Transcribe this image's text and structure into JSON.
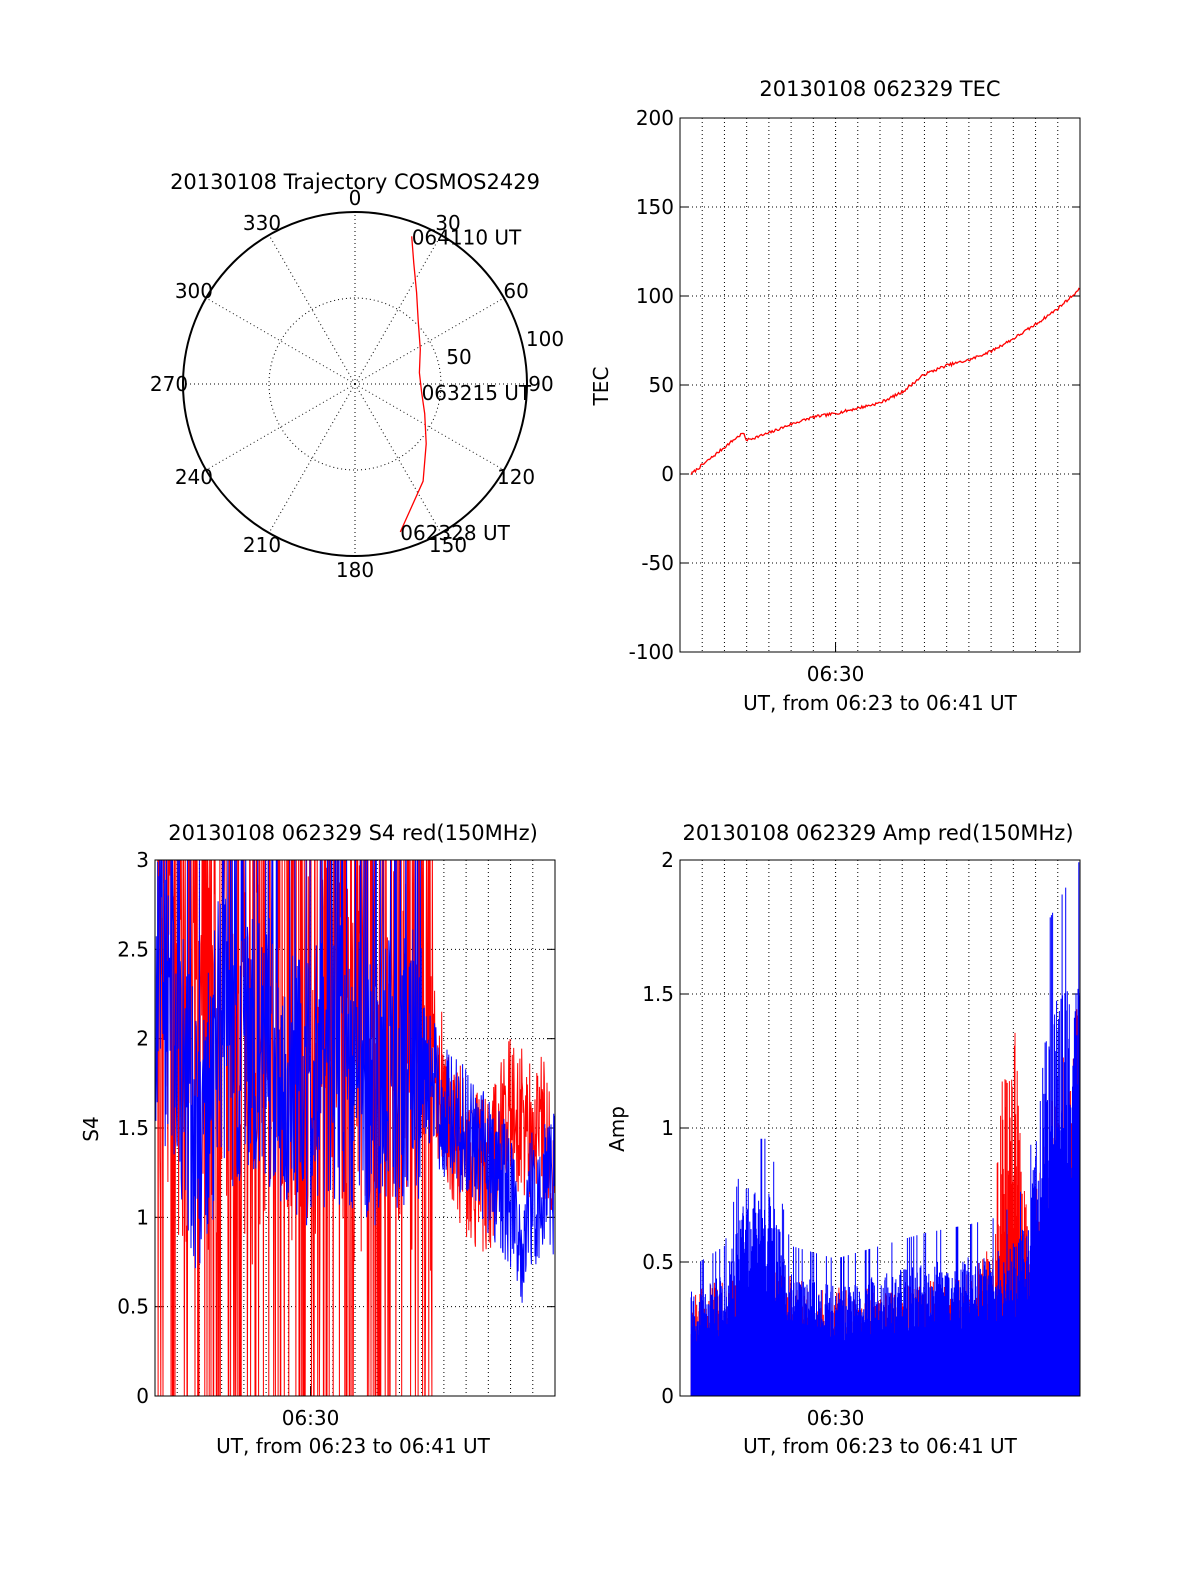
{
  "colors": {
    "red": "#ff0000",
    "blue": "#0000ff",
    "black": "#000000",
    "background": "#ffffff"
  },
  "chart_data": [
    {
      "id": "trajectory",
      "type": "polar",
      "title": "20130108 Trajectory COSMOS2429",
      "angle_labels": [
        "0",
        "30",
        "60",
        "90",
        "120",
        "150",
        "180",
        "210",
        "240",
        "270",
        "300",
        "330"
      ],
      "radial_labels": [
        "50",
        "100"
      ],
      "rlim": [
        0,
        100
      ],
      "grid": true,
      "series": [
        {
          "color": "#ff0000",
          "points": [
            {
              "az": 21,
              "r": 92
            },
            {
              "az": 26,
              "r": 78
            },
            {
              "az": 34,
              "r": 64
            },
            {
              "az": 45,
              "r": 52
            },
            {
              "az": 62,
              "r": 43
            },
            {
              "az": 80,
              "r": 38
            },
            {
              "az": 97,
              "r": 39
            },
            {
              "az": 113,
              "r": 44
            },
            {
              "az": 130,
              "r": 54
            },
            {
              "az": 145,
              "r": 69
            },
            {
              "az": 163,
              "r": 90
            }
          ]
        }
      ],
      "annotations": [
        {
          "text": "064110 UT",
          "az": 21,
          "r": 92
        },
        {
          "text": "063215 UT",
          "az": 97,
          "r": 39
        },
        {
          "text": "062328 UT",
          "az": 163,
          "r": 90
        }
      ]
    },
    {
      "id": "tec",
      "type": "line",
      "title": "20130108 062329 TEC",
      "xlabel": "UT, from 06:23 to 06:41 UT",
      "ylabel": "TEC",
      "xlim": [
        "06:23",
        "06:41"
      ],
      "ylim": [
        -100,
        200
      ],
      "yticks": [
        -100,
        -50,
        0,
        50,
        100,
        150,
        200
      ],
      "xtick_labels": [
        {
          "value": "06:30",
          "label": "06:30"
        }
      ],
      "grid": true,
      "series": [
        {
          "color": "#ff0000",
          "x": [
            "06:23:30",
            "06:24:30",
            "06:25:30",
            "06:25:50",
            "06:26:00",
            "06:27:00",
            "06:28:00",
            "06:29:00",
            "06:30:00",
            "06:31:00",
            "06:32:00",
            "06:33:00",
            "06:34:00",
            "06:35:00",
            "06:36:00",
            "06:37:00",
            "06:38:00",
            "06:39:00",
            "06:40:00",
            "06:41:00"
          ],
          "y": [
            0,
            10,
            20,
            23,
            19,
            23,
            28,
            32,
            34,
            37,
            40,
            46,
            56,
            61,
            64,
            69,
            76,
            84,
            93,
            104
          ]
        }
      ]
    },
    {
      "id": "s4",
      "type": "line",
      "title": "20130108 062329 S4 red(150MHz)",
      "xlabel": "UT, from 06:23 to 06:41 UT",
      "ylabel": "S4",
      "xlim": [
        "06:23",
        "06:41"
      ],
      "ylim": [
        0,
        3
      ],
      "yticks": [
        0,
        0.5,
        1,
        1.5,
        2,
        2.5,
        3
      ],
      "ytick_labels": [
        "0",
        "0.5",
        "1",
        "1.5",
        "2",
        "2.5",
        "3"
      ],
      "xtick_labels": [
        {
          "value": "06:30",
          "label": "06:30"
        }
      ],
      "grid": true,
      "series": [
        {
          "color": "#ff0000",
          "x": [
            "06:23:00",
            "06:25:00",
            "06:27:00",
            "06:29:00",
            "06:31:00",
            "06:33:00",
            "06:35:00",
            "06:36:00",
            "06:37:00",
            "06:38:00",
            "06:39:00",
            "06:40:00",
            "06:41:00"
          ],
          "y": [
            2.2,
            1.9,
            1.9,
            2.0,
            1.9,
            2.0,
            2.0,
            1.7,
            1.3,
            1.2,
            1.6,
            1.5,
            1.4
          ]
        },
        {
          "color": "#0000ff",
          "x": [
            "06:23:00",
            "06:24:00",
            "06:25:00",
            "06:26:00",
            "06:27:00",
            "06:28:00",
            "06:29:00",
            "06:30:00",
            "06:31:00",
            "06:32:00",
            "06:33:00",
            "06:34:00",
            "06:35:00",
            "06:36:00",
            "06:37:00",
            "06:38:00",
            "06:39:00",
            "06:39:30",
            "06:40:00",
            "06:41:00"
          ],
          "y": [
            2.3,
            2.0,
            1.3,
            2.1,
            1.8,
            2.0,
            1.8,
            1.7,
            1.9,
            1.8,
            1.7,
            1.8,
            1.9,
            1.6,
            1.5,
            1.3,
            1.1,
            0.8,
            1.1,
            1.2
          ]
        }
      ]
    },
    {
      "id": "amp",
      "type": "line",
      "title": "20130108 062329 Amp red(150MHz)",
      "xlabel": "UT, from 06:23 to 06:41 UT",
      "ylabel": "Amp",
      "xlim": [
        "06:23",
        "06:41"
      ],
      "ylim": [
        0,
        2
      ],
      "yticks": [
        0,
        0.5,
        1,
        1.5,
        2
      ],
      "ytick_labels": [
        "0",
        "0.5",
        "1",
        "1.5",
        "2"
      ],
      "xtick_labels": [
        {
          "value": "06:30",
          "label": "06:30"
        }
      ],
      "grid": true,
      "series": [
        {
          "color": "#ff0000",
          "x": [
            "06:23:30",
            "06:25:00",
            "06:27:00",
            "06:30:00",
            "06:33:00",
            "06:36:00",
            "06:37:00",
            "06:37:30",
            "06:38:00",
            "06:38:40",
            "06:40:00",
            "06:41:00"
          ],
          "y": [
            0.3,
            0.32,
            0.35,
            0.3,
            0.3,
            0.35,
            0.42,
            0.9,
            1.1,
            0.45,
            0.9,
            1.1
          ]
        },
        {
          "color": "#0000ff",
          "x": [
            "06:23:30",
            "06:25:00",
            "06:26:00",
            "06:27:00",
            "06:28:00",
            "06:30:00",
            "06:32:00",
            "06:34:00",
            "06:36:00",
            "06:37:30",
            "06:38:40",
            "06:39:30",
            "06:40:30",
            "06:41:00"
          ],
          "y": [
            0.3,
            0.35,
            0.6,
            0.6,
            0.35,
            0.32,
            0.35,
            0.38,
            0.4,
            0.42,
            0.5,
            1.1,
            1.2,
            1.25
          ]
        }
      ]
    }
  ]
}
